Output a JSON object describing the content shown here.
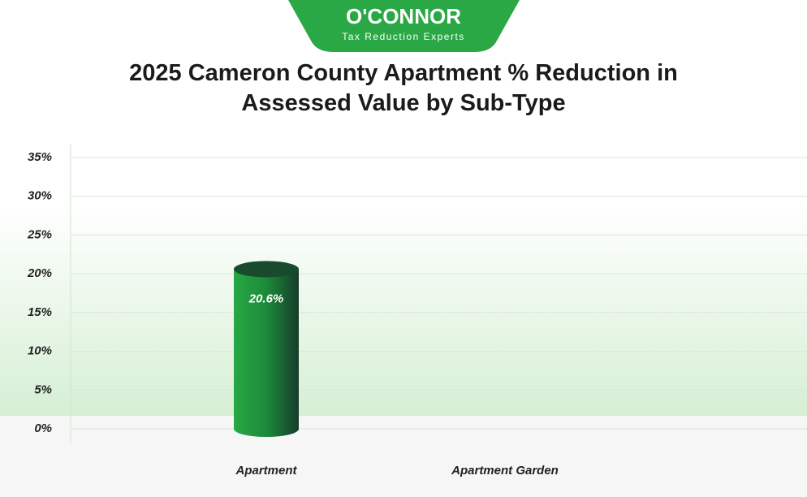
{
  "logo": {
    "name": "O'CONNOR",
    "tagline": "Tax Reduction Experts"
  },
  "chart_data": {
    "type": "bar",
    "title": "2025 Cameron County Apartment % Reduction in Assessed Value by Sub-Type",
    "categories": [
      "Apartment",
      "Apartment Garden"
    ],
    "values": [
      20.6,
      null
    ],
    "value_labels": [
      "20.6%",
      null
    ],
    "color": "#1e9a3e",
    "ylim": [
      0,
      35
    ],
    "yticks": [
      {
        "value": 0,
        "label": "0%"
      },
      {
        "value": 5,
        "label": "5%"
      },
      {
        "value": 10,
        "label": "10%"
      },
      {
        "value": 15,
        "label": "15%"
      },
      {
        "value": 20,
        "label": "20%"
      },
      {
        "value": 25,
        "label": "25%"
      },
      {
        "value": 30,
        "label": "30%"
      },
      {
        "value": 35,
        "label": "35%"
      }
    ],
    "grid": true
  }
}
